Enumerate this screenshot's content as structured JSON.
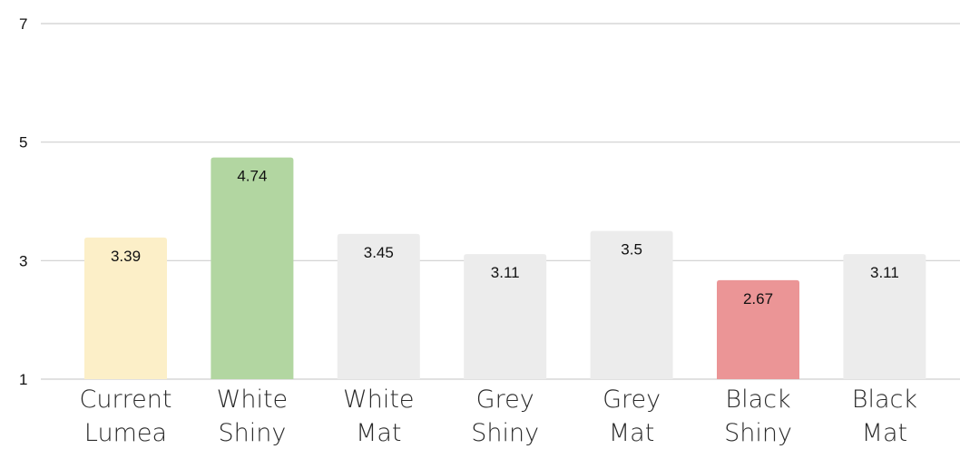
{
  "chart_data": {
    "type": "bar",
    "title": "",
    "xlabel": "",
    "ylabel": "",
    "ylim": [
      1,
      7
    ],
    "y_ticks": [
      "1",
      "3",
      "5",
      "7"
    ],
    "grid": true,
    "categories": [
      [
        "Current",
        "Lumea"
      ],
      [
        "White",
        "Shiny"
      ],
      [
        "White",
        "Mat"
      ],
      [
        "Grey",
        "Shiny"
      ],
      [
        "Grey",
        "Mat"
      ],
      [
        "Black",
        "Shiny"
      ],
      [
        "Black",
        "Mat"
      ]
    ],
    "values": [
      3.39,
      4.74,
      3.45,
      3.11,
      3.5,
      2.67,
      3.11
    ],
    "value_labels": [
      "3.39",
      "4.74",
      "3.45",
      "3.11",
      "3.5",
      "2.67",
      "3.11"
    ],
    "bar_colors": [
      "#fcefc8",
      "#b2d6a1",
      "#ececec",
      "#ececec",
      "#ececec",
      "#eb9596",
      "#ececec"
    ],
    "gridline_color": "#cfcfcf"
  }
}
